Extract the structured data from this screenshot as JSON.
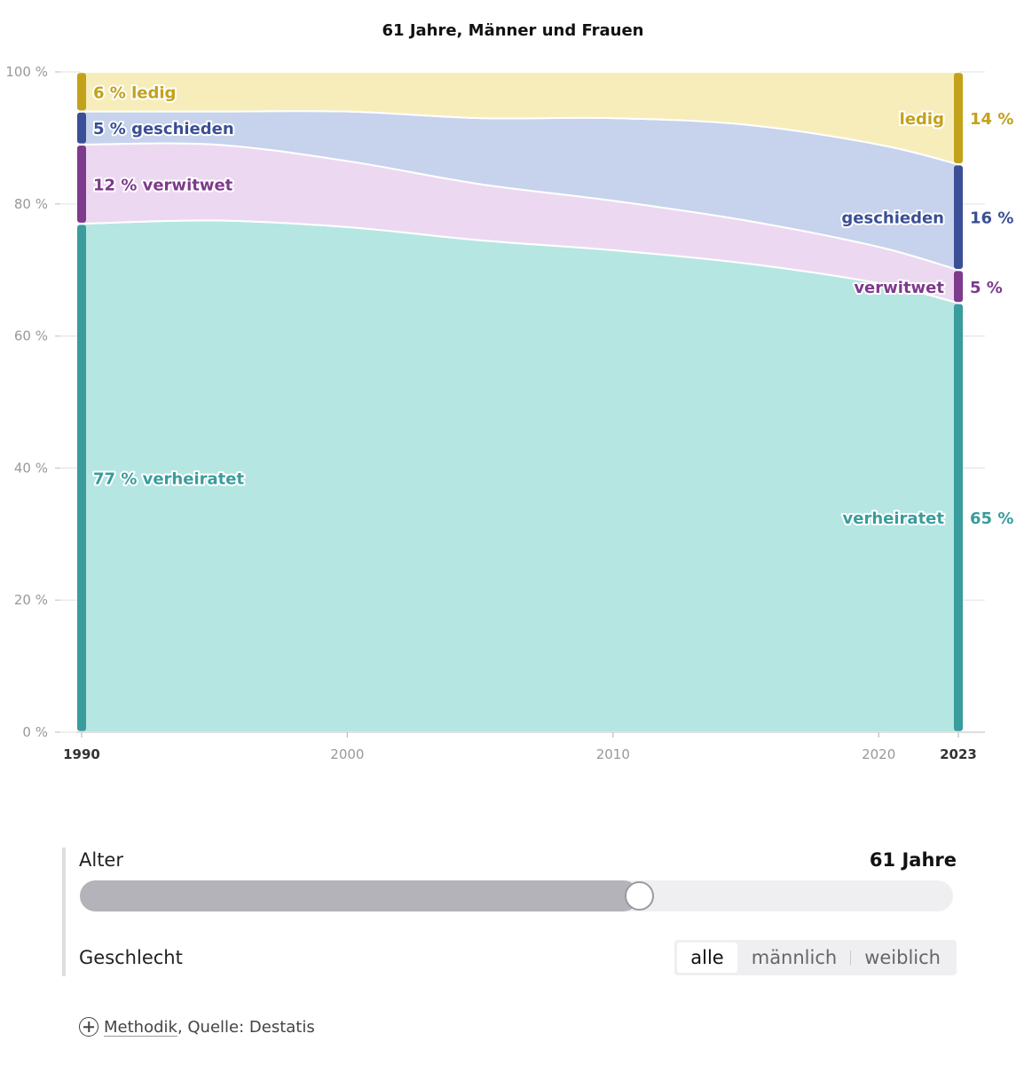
{
  "chart_data": {
    "type": "area",
    "title": "61 Jahre, Männer und Frauen",
    "x": [
      1990,
      1995,
      2000,
      2005,
      2010,
      2015,
      2020,
      2023
    ],
    "x_ticks": [
      1990,
      2000,
      2010,
      2020,
      2023
    ],
    "x_tick_labels": [
      "1990",
      "2000",
      "2010",
      "2020",
      "2023"
    ],
    "y_ticks": [
      0,
      20,
      40,
      60,
      80,
      100
    ],
    "y_tick_labels": [
      "0 %",
      "20 %",
      "40 %",
      "60 %",
      "80 %",
      "100 %"
    ],
    "ylim": [
      0,
      100
    ],
    "xlim": [
      1990,
      2023
    ],
    "stacked": true,
    "grid": true,
    "unit": "%",
    "series": [
      {
        "name": "verheiratet",
        "values": [
          77,
          77.5,
          76.5,
          74.5,
          73,
          71,
          68,
          65
        ],
        "start_label": "77 %",
        "end_label": "65 %",
        "color": "#3a9c9c",
        "fill": "#b5e6e2"
      },
      {
        "name": "verwitwet",
        "values": [
          12,
          11.5,
          10,
          8.5,
          7.5,
          6.5,
          5.5,
          5
        ],
        "start_label": "12 %",
        "end_label": "5 %",
        "color": "#7e3a8c",
        "fill": "#ecd9f1"
      },
      {
        "name": "geschieden",
        "values": [
          5,
          5,
          7.5,
          10,
          12.5,
          14.5,
          15.5,
          16
        ],
        "start_label": "5 %",
        "end_label": "16 %",
        "color": "#3a4f96",
        "fill": "#c7d2ec"
      },
      {
        "name": "ledig",
        "values": [
          6,
          6,
          6,
          7,
          7,
          8,
          11,
          14
        ],
        "start_label": "6 %",
        "end_label": "14 %",
        "color": "#c2a21b",
        "fill": "#f7edbb"
      }
    ]
  },
  "controls": {
    "age_label": "Alter",
    "age_value": "61 Jahre",
    "age_fraction": 0.64,
    "gender_label": "Geschlecht",
    "gender_options": [
      "alle",
      "männlich",
      "weiblich"
    ],
    "gender_selected": "alle"
  },
  "footer": {
    "methodik_link": "Methodik",
    "source_text": ", Quelle: Destatis"
  }
}
